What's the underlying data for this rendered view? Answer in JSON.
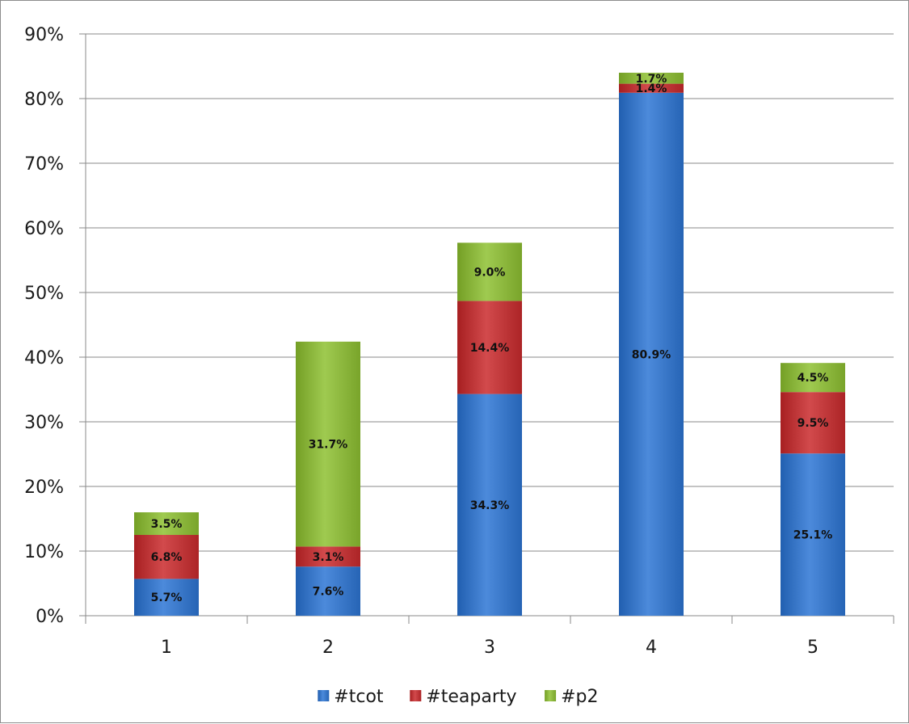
{
  "chart_data": {
    "type": "bar",
    "stacked": true,
    "categories": [
      "1",
      "2",
      "3",
      "4",
      "5"
    ],
    "series": [
      {
        "name": "#tcot",
        "color": "#3a78c9",
        "values": [
          5.7,
          7.6,
          34.3,
          80.9,
          25.1
        ],
        "labels": [
          "5.7%",
          "7.6%",
          "34.3%",
          "80.9%",
          "25.1%"
        ]
      },
      {
        "name": "#teaparty",
        "color": "#c0383a",
        "values": [
          6.8,
          3.1,
          14.4,
          1.4,
          9.5
        ],
        "labels": [
          "6.8%",
          "3.1%",
          "14.4%",
          "1.4%",
          "9.5%"
        ]
      },
      {
        "name": "#p2",
        "color": "#8db83e",
        "values": [
          3.5,
          31.7,
          9.0,
          1.7,
          4.5
        ],
        "labels": [
          "3.5%",
          "31.7%",
          "9.0%",
          "1.7%",
          "4.5%"
        ]
      }
    ],
    "ylim": [
      0,
      90
    ],
    "yticks": [
      "0%",
      "10%",
      "20%",
      "30%",
      "40%",
      "50%",
      "60%",
      "70%",
      "80%",
      "90%"
    ],
    "grid": true,
    "legend_position": "bottom"
  }
}
